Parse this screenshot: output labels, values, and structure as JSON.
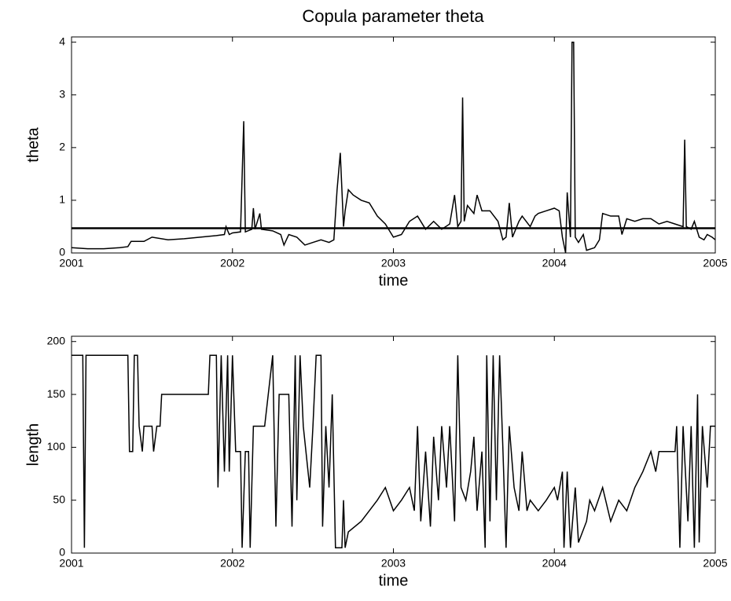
{
  "chart_data": [
    {
      "type": "line",
      "title": "Copula parameter theta",
      "x_label": "time",
      "y_label": "theta",
      "color": "#000000",
      "xlim": [
        2001,
        2005
      ],
      "xticks": [
        2001,
        2002,
        2003,
        2004,
        2005
      ],
      "ylim": [
        0,
        4.1
      ],
      "yticks": [
        0,
        1,
        2,
        3,
        4
      ],
      "hline": 0.47,
      "x": [
        2001.0,
        2001.1,
        2001.2,
        2001.3,
        2001.35,
        2001.37,
        2001.45,
        2001.5,
        2001.6,
        2001.7,
        2001.8,
        2001.9,
        2001.95,
        2001.96,
        2001.98,
        2002.0,
        2002.05,
        2002.07,
        2002.08,
        2002.12,
        2002.13,
        2002.14,
        2002.17,
        2002.18,
        2002.25,
        2002.3,
        2002.32,
        2002.35,
        2002.4,
        2002.45,
        2002.5,
        2002.55,
        2002.6,
        2002.63,
        2002.65,
        2002.67,
        2002.69,
        2002.7,
        2002.72,
        2002.75,
        2002.8,
        2002.85,
        2002.9,
        2002.95,
        2003.0,
        2003.05,
        2003.1,
        2003.15,
        2003.2,
        2003.25,
        2003.3,
        2003.35,
        2003.38,
        2003.4,
        2003.42,
        2003.43,
        2003.44,
        2003.46,
        2003.5,
        2003.52,
        2003.55,
        2003.6,
        2003.65,
        2003.68,
        2003.7,
        2003.72,
        2003.74,
        2003.78,
        2003.8,
        2003.85,
        2003.88,
        2003.9,
        2003.95,
        2004.0,
        2004.03,
        2004.05,
        2004.07,
        2004.08,
        2004.1,
        2004.11,
        2004.12,
        2004.13,
        2004.15,
        2004.18,
        2004.2,
        2004.25,
        2004.28,
        2004.3,
        2004.35,
        2004.4,
        2004.42,
        2004.45,
        2004.5,
        2004.55,
        2004.6,
        2004.65,
        2004.7,
        2004.75,
        2004.8,
        2004.81,
        2004.82,
        2004.85,
        2004.87,
        2004.9,
        2004.93,
        2004.95,
        2004.98,
        2005.0
      ],
      "values": [
        0.1,
        0.08,
        0.08,
        0.1,
        0.12,
        0.22,
        0.22,
        0.3,
        0.25,
        0.27,
        0.3,
        0.33,
        0.35,
        0.5,
        0.35,
        0.38,
        0.4,
        2.5,
        0.4,
        0.45,
        0.85,
        0.45,
        0.75,
        0.45,
        0.42,
        0.35,
        0.15,
        0.35,
        0.3,
        0.15,
        0.2,
        0.25,
        0.2,
        0.25,
        1.2,
        1.9,
        0.5,
        0.8,
        1.2,
        1.1,
        1.0,
        0.95,
        0.7,
        0.55,
        0.3,
        0.35,
        0.6,
        0.7,
        0.45,
        0.6,
        0.45,
        0.55,
        1.1,
        0.5,
        0.6,
        2.95,
        0.6,
        0.9,
        0.75,
        1.1,
        0.8,
        0.8,
        0.6,
        0.25,
        0.3,
        0.95,
        0.3,
        0.6,
        0.7,
        0.5,
        0.7,
        0.75,
        0.8,
        0.85,
        0.8,
        0.3,
        0.0,
        1.15,
        0.3,
        4.0,
        4.0,
        0.3,
        0.2,
        0.35,
        0.05,
        0.1,
        0.25,
        0.75,
        0.7,
        0.7,
        0.35,
        0.65,
        0.6,
        0.65,
        0.65,
        0.55,
        0.6,
        0.55,
        0.5,
        2.15,
        0.5,
        0.45,
        0.6,
        0.3,
        0.25,
        0.35,
        0.3,
        0.25
      ]
    },
    {
      "type": "line",
      "x_label": "time",
      "y_label": "length",
      "color": "#000000",
      "xlim": [
        2001,
        2005
      ],
      "xticks": [
        2001,
        2002,
        2003,
        2004,
        2005
      ],
      "ylim": [
        0,
        205
      ],
      "yticks": [
        0,
        50,
        100,
        150,
        200
      ],
      "x": [
        2001.0,
        2001.07,
        2001.08,
        2001.09,
        2001.35,
        2001.36,
        2001.38,
        2001.39,
        2001.41,
        2001.42,
        2001.44,
        2001.45,
        2001.5,
        2001.51,
        2001.53,
        2001.55,
        2001.56,
        2001.85,
        2001.86,
        2001.9,
        2001.91,
        2001.93,
        2001.95,
        2001.97,
        2001.98,
        2002.0,
        2002.02,
        2002.05,
        2002.06,
        2002.08,
        2002.1,
        2002.11,
        2002.13,
        2002.2,
        2002.25,
        2002.27,
        2002.29,
        2002.35,
        2002.37,
        2002.39,
        2002.4,
        2002.42,
        2002.44,
        2002.48,
        2002.5,
        2002.52,
        2002.55,
        2002.56,
        2002.58,
        2002.6,
        2002.62,
        2002.64,
        2002.68,
        2002.69,
        2002.7,
        2002.72,
        2002.8,
        2002.85,
        2002.9,
        2002.95,
        2003.0,
        2003.05,
        2003.1,
        2003.13,
        2003.15,
        2003.17,
        2003.2,
        2003.23,
        2003.25,
        2003.28,
        2003.3,
        2003.33,
        2003.35,
        2003.38,
        2003.4,
        2003.42,
        2003.45,
        2003.48,
        2003.5,
        2003.52,
        2003.55,
        2003.57,
        2003.58,
        2003.6,
        2003.62,
        2003.64,
        2003.66,
        2003.68,
        2003.7,
        2003.72,
        2003.75,
        2003.78,
        2003.8,
        2003.83,
        2003.85,
        2003.9,
        2003.95,
        2004.0,
        2004.02,
        2004.05,
        2004.06,
        2004.08,
        2004.1,
        2004.13,
        2004.15,
        2004.2,
        2004.22,
        2004.25,
        2004.3,
        2004.35,
        2004.4,
        2004.45,
        2004.5,
        2004.55,
        2004.6,
        2004.63,
        2004.65,
        2004.75,
        2004.76,
        2004.78,
        2004.8,
        2004.83,
        2004.85,
        2004.87,
        2004.89,
        2004.9,
        2004.92,
        2004.95,
        2004.97,
        2005.0
      ],
      "values": [
        187,
        187,
        5,
        187,
        187,
        96,
        96,
        187,
        187,
        120,
        96,
        120,
        120,
        96,
        120,
        120,
        150,
        150,
        187,
        187,
        62,
        187,
        77,
        187,
        77,
        187,
        96,
        96,
        5,
        96,
        96,
        5,
        120,
        120,
        187,
        25,
        150,
        150,
        25,
        187,
        50,
        187,
        120,
        62,
        120,
        187,
        187,
        25,
        120,
        62,
        150,
        5,
        5,
        50,
        5,
        20,
        30,
        40,
        50,
        62,
        40,
        50,
        62,
        40,
        120,
        30,
        96,
        25,
        110,
        50,
        120,
        62,
        120,
        30,
        187,
        62,
        50,
        77,
        110,
        40,
        96,
        5,
        187,
        30,
        187,
        50,
        187,
        100,
        5,
        120,
        62,
        40,
        96,
        40,
        50,
        40,
        50,
        62,
        50,
        77,
        5,
        77,
        5,
        62,
        10,
        30,
        50,
        40,
        62,
        30,
        50,
        40,
        62,
        77,
        96,
        77,
        96,
        96,
        120,
        5,
        120,
        30,
        120,
        5,
        150,
        10,
        120,
        62,
        120,
        120
      ]
    }
  ]
}
